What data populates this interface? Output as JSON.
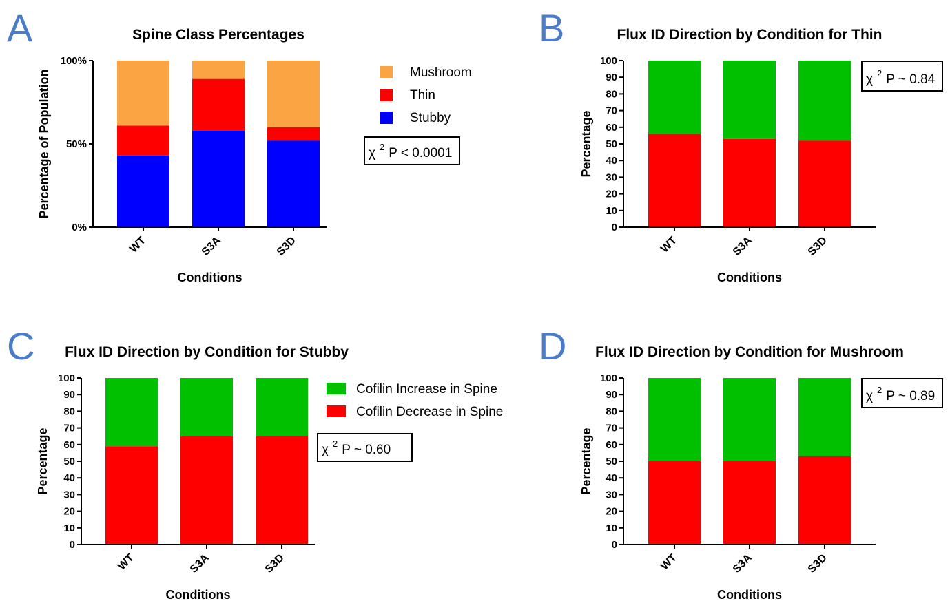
{
  "chart_data": [
    {
      "panel": "A",
      "type": "bar",
      "stacked": true,
      "title": "Spine Class Percentages",
      "xlabel": "Conditions",
      "ylabel": "Percentage of Population",
      "categories": [
        "WT",
        "S3A",
        "S3D"
      ],
      "ylim": [
        0,
        100
      ],
      "yticks": [
        0,
        50,
        100
      ],
      "ytick_labels": [
        "0%",
        "50%",
        "100%"
      ],
      "series": [
        {
          "name": "Stubby",
          "color": "#0000ff",
          "values": [
            43,
            58,
            52
          ]
        },
        {
          "name": "Thin",
          "color": "#ff0000",
          "values": [
            18,
            31,
            8
          ]
        },
        {
          "name": "Mushroom",
          "color": "#fba444",
          "values": [
            39,
            11,
            40
          ]
        }
      ],
      "legend": {
        "position": "right",
        "order": [
          "Mushroom",
          "Thin",
          "Stubby"
        ]
      },
      "stat": {
        "symbol": "χ",
        "sup": "2",
        "text": "P < 0.0001"
      }
    },
    {
      "panel": "B",
      "type": "bar",
      "stacked": true,
      "title": "Flux ID Direction by Condition for Thin",
      "xlabel": "Conditions",
      "ylabel": "Percentage",
      "categories": [
        "WT",
        "S3A",
        "S3D"
      ],
      "ylim": [
        0,
        100
      ],
      "yticks": [
        0,
        10,
        20,
        30,
        40,
        50,
        60,
        70,
        80,
        90,
        100
      ],
      "ytick_labels": [
        "0",
        "10",
        "20",
        "30",
        "40",
        "50",
        "60",
        "70",
        "80",
        "90",
        "100"
      ],
      "series": [
        {
          "name": "Cofilin Decrease in Spine",
          "color": "#ff0000",
          "values": [
            56,
            53,
            52
          ]
        },
        {
          "name": "Cofilin Increase in Spine",
          "color": "#00c000",
          "values": [
            44,
            47,
            48
          ]
        }
      ],
      "stat": {
        "symbol": "χ",
        "sup": "2",
        "text": "P ~ 0.84"
      }
    },
    {
      "panel": "C",
      "type": "bar",
      "stacked": true,
      "title": "Flux ID Direction by Condition for Stubby",
      "xlabel": "Conditions",
      "ylabel": "Percentage",
      "categories": [
        "WT",
        "S3A",
        "S3D"
      ],
      "ylim": [
        0,
        100
      ],
      "yticks": [
        0,
        10,
        20,
        30,
        40,
        50,
        60,
        70,
        80,
        90,
        100
      ],
      "ytick_labels": [
        "0",
        "10",
        "20",
        "30",
        "40",
        "50",
        "60",
        "70",
        "80",
        "90",
        "100"
      ],
      "series": [
        {
          "name": "Cofilin Decrease in Spine",
          "color": "#ff0000",
          "values": [
            59,
            65,
            65
          ]
        },
        {
          "name": "Cofilin Increase in Spine",
          "color": "#00c000",
          "values": [
            41,
            35,
            35
          ]
        }
      ],
      "legend": {
        "position": "right",
        "order": [
          "Cofilin Increase in Spine",
          "Cofilin Decrease in Spine"
        ]
      },
      "stat": {
        "symbol": "χ",
        "sup": "2",
        "text": "P ~ 0.60"
      }
    },
    {
      "panel": "D",
      "type": "bar",
      "stacked": true,
      "title": "Flux ID Direction by Condition for Mushroom",
      "xlabel": "Conditions",
      "ylabel": "Percentage",
      "categories": [
        "WT",
        "S3A",
        "S3D"
      ],
      "ylim": [
        0,
        100
      ],
      "yticks": [
        0,
        10,
        20,
        30,
        40,
        50,
        60,
        70,
        80,
        90,
        100
      ],
      "ytick_labels": [
        "0",
        "10",
        "20",
        "30",
        "40",
        "50",
        "60",
        "70",
        "80",
        "90",
        "100"
      ],
      "series": [
        {
          "name": "Cofilin Decrease in Spine",
          "color": "#ff0000",
          "values": [
            50,
            50,
            53
          ]
        },
        {
          "name": "Cofilin Increase in Spine",
          "color": "#00c000",
          "values": [
            50,
            50,
            47
          ]
        }
      ],
      "stat": {
        "symbol": "χ",
        "sup": "2",
        "text": "P ~ 0.89"
      }
    }
  ]
}
